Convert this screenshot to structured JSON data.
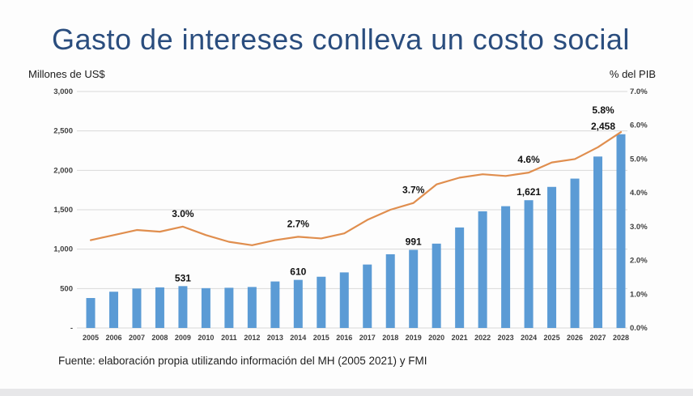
{
  "slide": {
    "title": "Gasto de intereses conlleva un costo social",
    "title_color": "#2a4d7e",
    "footer": "Fuente: elaboración propia utilizando información del MH (2005 2021) y FMI"
  },
  "chart_data": {
    "type": "combo-bar-line",
    "title": "Gasto de intereses conlleva un costo social",
    "categories": [
      "2005",
      "2006",
      "2007",
      "2008",
      "2009",
      "2010",
      "2011",
      "2012",
      "2013",
      "2014",
      "2015",
      "2016",
      "2017",
      "2018",
      "2019",
      "2020",
      "2021",
      "2022",
      "2023",
      "2024",
      "2025",
      "2026",
      "2027",
      "2028"
    ],
    "series": [
      {
        "name": "Millones de US$",
        "type": "bar",
        "axis": "left",
        "color": "#5b9bd5",
        "values": [
          380,
          460,
          500,
          515,
          531,
          505,
          510,
          520,
          590,
          610,
          650,
          705,
          805,
          935,
          991,
          1070,
          1275,
          1480,
          1545,
          1621,
          1790,
          1895,
          2175,
          2458
        ],
        "labels": {
          "2009": "531",
          "2014": "610",
          "2019": "991",
          "2024": "1,621",
          "2028": "2,458"
        }
      },
      {
        "name": "% del PIB",
        "type": "line",
        "axis": "right",
        "color": "#e08e4e",
        "values": [
          2.6,
          2.75,
          2.9,
          2.85,
          3.0,
          2.75,
          2.55,
          2.45,
          2.6,
          2.7,
          2.65,
          2.8,
          3.2,
          3.5,
          3.7,
          4.25,
          4.45,
          4.55,
          4.5,
          4.6,
          4.9,
          5.0,
          5.35,
          5.8
        ],
        "labels": {
          "2009": "3.0%",
          "2014": "2.7%",
          "2019": "3.7%",
          "2024": "4.6%",
          "2028": "5.8%"
        }
      }
    ],
    "left_axis": {
      "title": "Millones de US$",
      "min": 0,
      "max": 3000,
      "ticks": [
        "3,000",
        "2,500",
        "2,000",
        "1,500",
        "1,000",
        "500",
        "-"
      ]
    },
    "right_axis": {
      "title": "% del PIB",
      "min": 0,
      "max": 7,
      "ticks": [
        "7.0%",
        "6.0%",
        "5.0%",
        "4.0%",
        "3.0%",
        "2.0%",
        "1.0%",
        "0.0%"
      ]
    },
    "grid": true,
    "legend": false,
    "gridline_color": "#d9d9d9",
    "tick_color": "#3f3f3f",
    "data_label_color": "#111111"
  }
}
